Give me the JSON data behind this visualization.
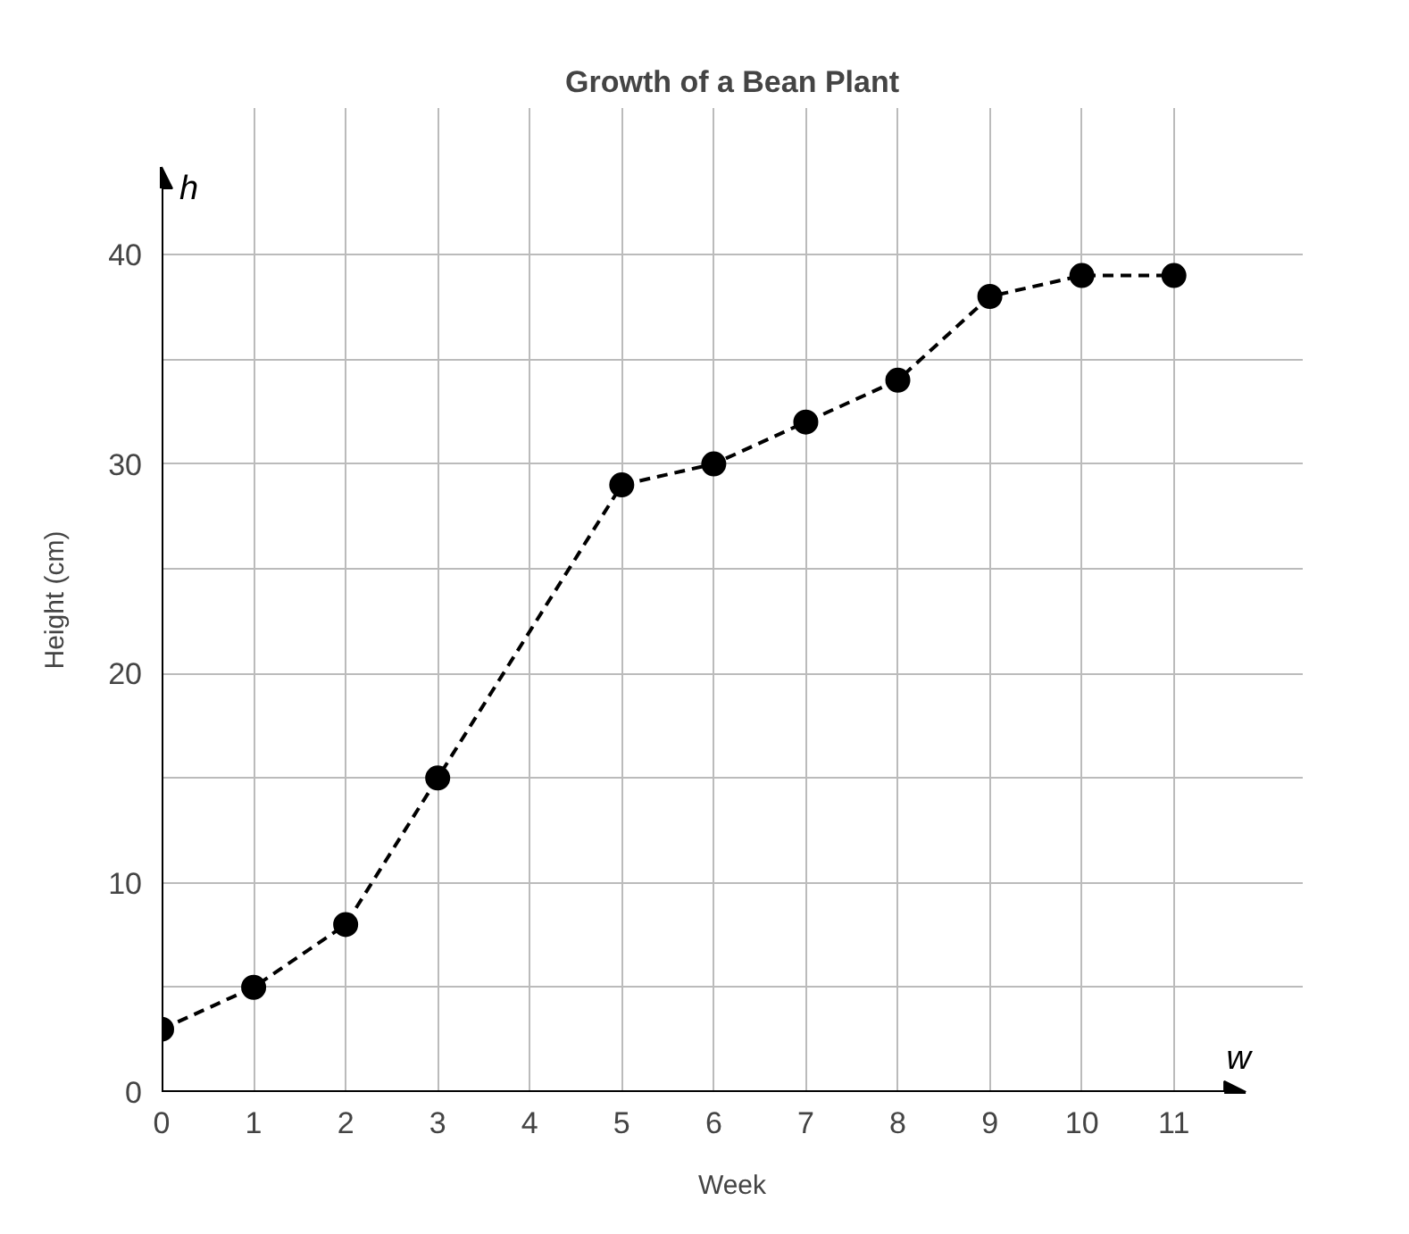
{
  "chart_data": {
    "type": "line",
    "title": "Growth of a Bean Plant",
    "xlabel": "Week",
    "ylabel": "Height (cm)",
    "annotations": [
      "h",
      "w"
    ],
    "x": [
      0,
      1,
      2,
      3,
      5,
      6,
      7,
      8,
      9,
      10,
      11
    ],
    "series": [
      {
        "color": "#000000",
        "values": [
          3,
          5,
          8,
          15,
          29,
          30,
          32,
          34,
          38,
          39,
          39
        ]
      }
    ],
    "xlim": [
      0,
      12.4
    ],
    "ylim": [
      0,
      47
    ],
    "xticks": [
      0,
      1,
      2,
      3,
      4,
      5,
      6,
      7,
      8,
      9,
      10,
      11
    ],
    "yticks": [
      0,
      {
        "value": 5,
        "label": null
      },
      10,
      {
        "value": 15,
        "label": null
      },
      20,
      {
        "value": 25,
        "label": null
      },
      30,
      {
        "value": 35,
        "label": null
      },
      40
    ],
    "grid": true,
    "marker": "circle",
    "line_style": "dashed"
  }
}
